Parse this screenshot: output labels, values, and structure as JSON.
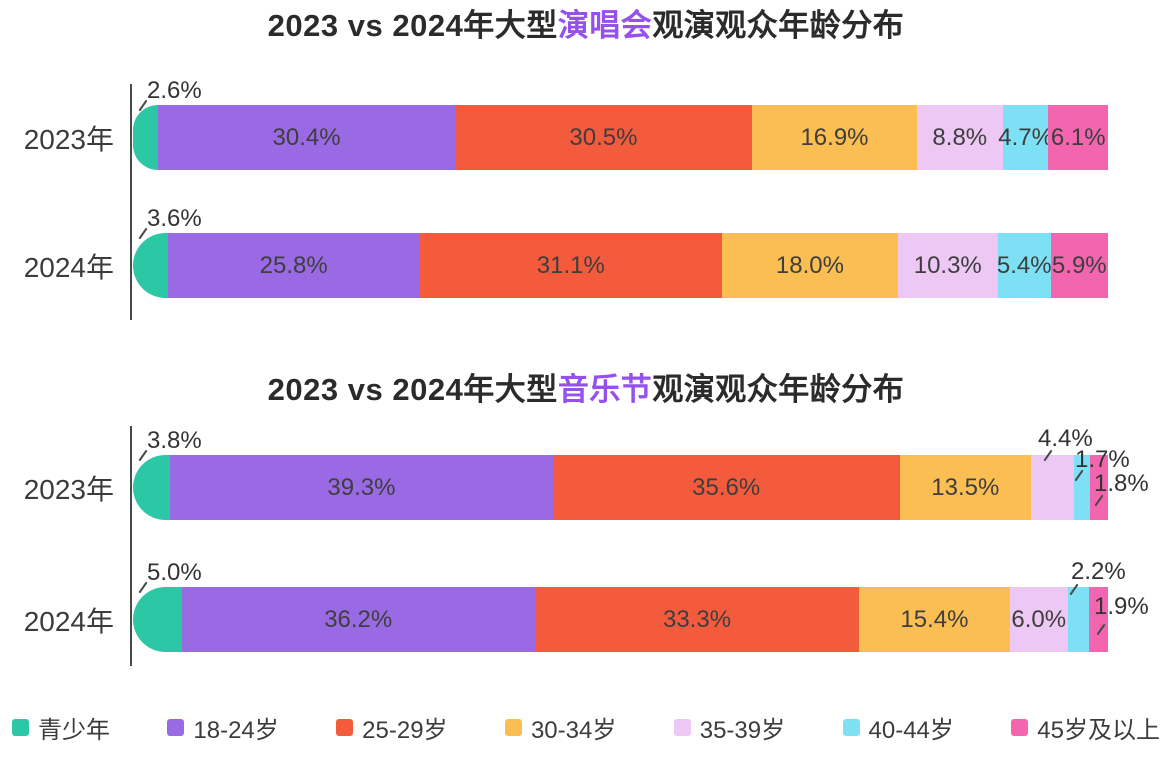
{
  "page": {
    "background": "#ffffff",
    "title_color": "#2b2b2b",
    "highlight_color": "#9650ee",
    "label_color": "#3e3e3e",
    "axis_color": "#4a4a4a"
  },
  "series_colors": [
    "#2cc8a6",
    "#9a6ae4",
    "#f45a3c",
    "#fbbe52",
    "#edc8f4",
    "#7ee0f4",
    "#f366af"
  ],
  "chart_data": [
    {
      "type": "bar",
      "stacked": true,
      "orientation": "horizontal",
      "title": {
        "prefix": "2023 vs 2024年大型",
        "highlight": "演唱会",
        "suffix": "观演观众年龄分布"
      },
      "unit": "%",
      "xlim": [
        0,
        100
      ],
      "grid": false,
      "categories": [
        "2023年",
        "2024年"
      ],
      "series": [
        {
          "name": "青少年",
          "values": [
            2.6,
            3.6
          ]
        },
        {
          "name": "18-24岁",
          "values": [
            30.4,
            25.8
          ]
        },
        {
          "name": "25-29岁",
          "values": [
            30.5,
            31.1
          ]
        },
        {
          "name": "30-34岁",
          "values": [
            16.9,
            18.0
          ]
        },
        {
          "name": "35-39岁",
          "values": [
            8.8,
            10.3
          ]
        },
        {
          "name": "40-44岁",
          "values": [
            4.7,
            5.4
          ]
        },
        {
          "name": "45岁及以上",
          "values": [
            6.1,
            5.9
          ]
        }
      ],
      "data_labels": {
        "2023年": [
          "2.6%",
          "30.4%",
          "30.5%",
          "16.9%",
          "8.8%",
          "4.7%",
          "6.1%"
        ],
        "2024年": [
          "3.6%",
          "25.8%",
          "31.1%",
          "18.0%",
          "10.3%",
          "5.4%",
          "5.9%"
        ]
      }
    },
    {
      "type": "bar",
      "stacked": true,
      "orientation": "horizontal",
      "title": {
        "prefix": "2023 vs 2024年大型",
        "highlight": "音乐节",
        "suffix": "观演观众年龄分布"
      },
      "unit": "%",
      "xlim": [
        0,
        100
      ],
      "grid": false,
      "categories": [
        "2023年",
        "2024年"
      ],
      "series": [
        {
          "name": "青少年",
          "values": [
            3.8,
            5.0
          ]
        },
        {
          "name": "18-24岁",
          "values": [
            39.3,
            36.2
          ]
        },
        {
          "name": "25-29岁",
          "values": [
            35.6,
            33.3
          ]
        },
        {
          "name": "30-34岁",
          "values": [
            13.5,
            15.4
          ]
        },
        {
          "name": "35-39岁",
          "values": [
            4.4,
            6.0
          ]
        },
        {
          "name": "40-44岁",
          "values": [
            1.7,
            2.2
          ]
        },
        {
          "name": "45岁及以上",
          "values": [
            1.8,
            1.9
          ]
        }
      ],
      "data_labels": {
        "2023年": [
          "3.8%",
          "39.3%",
          "35.6%",
          "13.5%",
          "4.4%",
          "1.7%",
          "1.8%"
        ],
        "2024年": [
          "5.0%",
          "36.2%",
          "33.3%",
          "15.4%",
          "6.0%",
          "2.2%",
          "1.9%"
        ]
      }
    }
  ],
  "legend": {
    "items": [
      {
        "label": "青少年",
        "color": "#2cc8a6"
      },
      {
        "label": "18-24岁",
        "color": "#9a6ae4"
      },
      {
        "label": "25-29岁",
        "color": "#f45a3c"
      },
      {
        "label": "30-34岁",
        "color": "#fbbe52"
      },
      {
        "label": "35-39岁",
        "color": "#edc8f4"
      },
      {
        "label": "40-44岁",
        "color": "#7ee0f4"
      },
      {
        "label": "45岁及以上",
        "color": "#f366af"
      }
    ],
    "position": "bottom"
  }
}
